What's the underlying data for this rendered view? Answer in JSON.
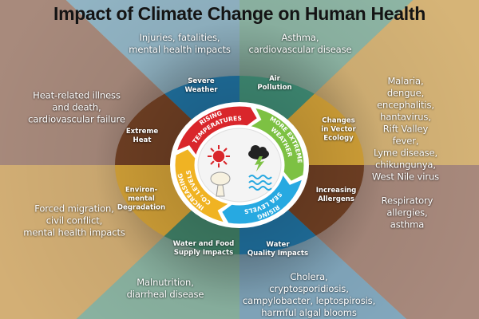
{
  "title": "Impact of Climate Change on Human Health",
  "outer_impacts": [
    {
      "id": "severe-weather",
      "text": "Injuries, fatalities,\nmental health impacts",
      "color": "#93b6c6"
    },
    {
      "id": "air-pollution",
      "text": "Asthma,\ncardiovascular disease",
      "color": "#8fb7a6"
    },
    {
      "id": "vector-ecology",
      "text": "Malaria, dengue,\nencephalitis, hantavirus,\nRift Valley fever,\nLyme disease,\nchikungunya,\nWest Nile virus",
      "color": "#d6b477"
    },
    {
      "id": "allergens",
      "text": "Respiratory\nallergies, asthma",
      "color": "#a98a7d"
    },
    {
      "id": "water-quality",
      "text": "Cholera,\ncryptosporidiosis,\ncampylobacter, leptospirosis,\nharmful algal blooms",
      "color": "#84aac0"
    },
    {
      "id": "water-food",
      "text": "Malnutrition,\ndiarrheal disease",
      "color": "#8cb5a3"
    },
    {
      "id": "environmental",
      "text": "Forced migration,\ncivil conflict,\nmental health impacts",
      "color": "#d3af75"
    },
    {
      "id": "extreme-heat",
      "text": "Heat-related illness\nand death,\ncardiovascular failure",
      "color": "#a88a7c"
    }
  ],
  "ring_factors": [
    {
      "id": "severe-weather",
      "text": "Severe\nWeather",
      "color": "#1e6b97"
    },
    {
      "id": "air-pollution",
      "text": "Air\nPollution",
      "color": "#3d8670"
    },
    {
      "id": "vector-ecology",
      "text": "Changes\nin Vector\nEcology",
      "color": "#c99a35"
    },
    {
      "id": "allergens",
      "text": "Increasing\nAllergens",
      "color": "#6b3d22"
    },
    {
      "id": "water-quality",
      "text": "Water\nQuality Impacts",
      "color": "#1e6b97"
    },
    {
      "id": "water-food",
      "text": "Water and Food\nSupply Impacts",
      "color": "#3d7a62"
    },
    {
      "id": "environmental",
      "text": "Environ-\nmental\nDegradation",
      "color": "#c99a35"
    },
    {
      "id": "extreme-heat",
      "text": "Extreme\nHeat",
      "color": "#6b3d22"
    }
  ],
  "drivers": [
    {
      "id": "rising-temperatures",
      "line1": "RISING",
      "line2": "TEMPERATURES",
      "color": "#d9262b",
      "icon": "sun-icon"
    },
    {
      "id": "more-extreme-weather",
      "line1": "MORE EXTREME",
      "line2": "WEATHER",
      "color": "#7dc143",
      "icon": "storm-cloud-icon"
    },
    {
      "id": "rising-sea-levels",
      "line1": "RISING",
      "line2": "SEA LEVELS",
      "color": "#27a9e1",
      "icon": "waves-icon"
    },
    {
      "id": "increasing-co2",
      "line1": "INCREASING",
      "line2": "CO₂ LEVELS",
      "color": "#f0b323",
      "icon": "smoke-cloud-icon"
    }
  ]
}
